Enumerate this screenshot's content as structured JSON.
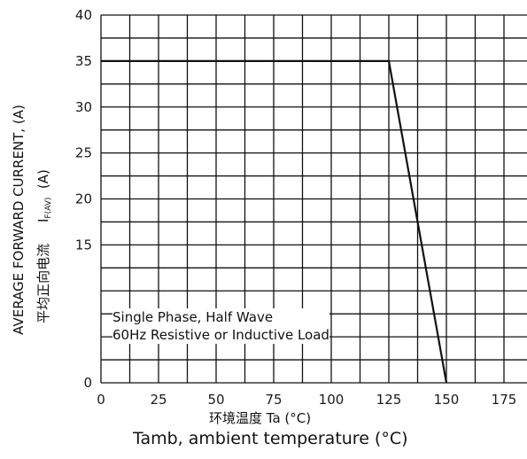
{
  "chart_data": {
    "type": "line",
    "x": [
      0,
      125,
      150
    ],
    "series": [
      {
        "values": [
          35,
          35,
          0
        ],
        "color": "#111111"
      }
    ],
    "xlim": [
      0,
      185
    ],
    "ylim": [
      0,
      40
    ],
    "x_ticks": [
      0,
      25,
      50,
      75,
      100,
      125,
      150,
      175
    ],
    "y_ticks": [
      0,
      5,
      10,
      15,
      20,
      25,
      30,
      35,
      40
    ],
    "x_tick_labels": [
      "0",
      "25",
      "50",
      "75",
      "100",
      "125",
      "150",
      "175"
    ],
    "y_tick_labels": [
      "0",
      "",
      "",
      "15",
      "20",
      "25",
      "30",
      "35",
      "40"
    ],
    "xlabel_cn": "环境温度 Ta (°C)",
    "xlabel": "Tamb, ambient temperature (°C)",
    "ylabel": "AVERAGE FORWARD CURRENT, (A)",
    "ylabel_cn": "平均正向电流",
    "ylabel_symbol": "I",
    "ylabel_symbol_sub": "F(AV)",
    "ylabel_unit": "(A)",
    "annotation": [
      "Single Phase, Half Wave",
      "60Hz Resistive or Inductive Load"
    ],
    "grid": true,
    "grid_color": "#111111"
  }
}
